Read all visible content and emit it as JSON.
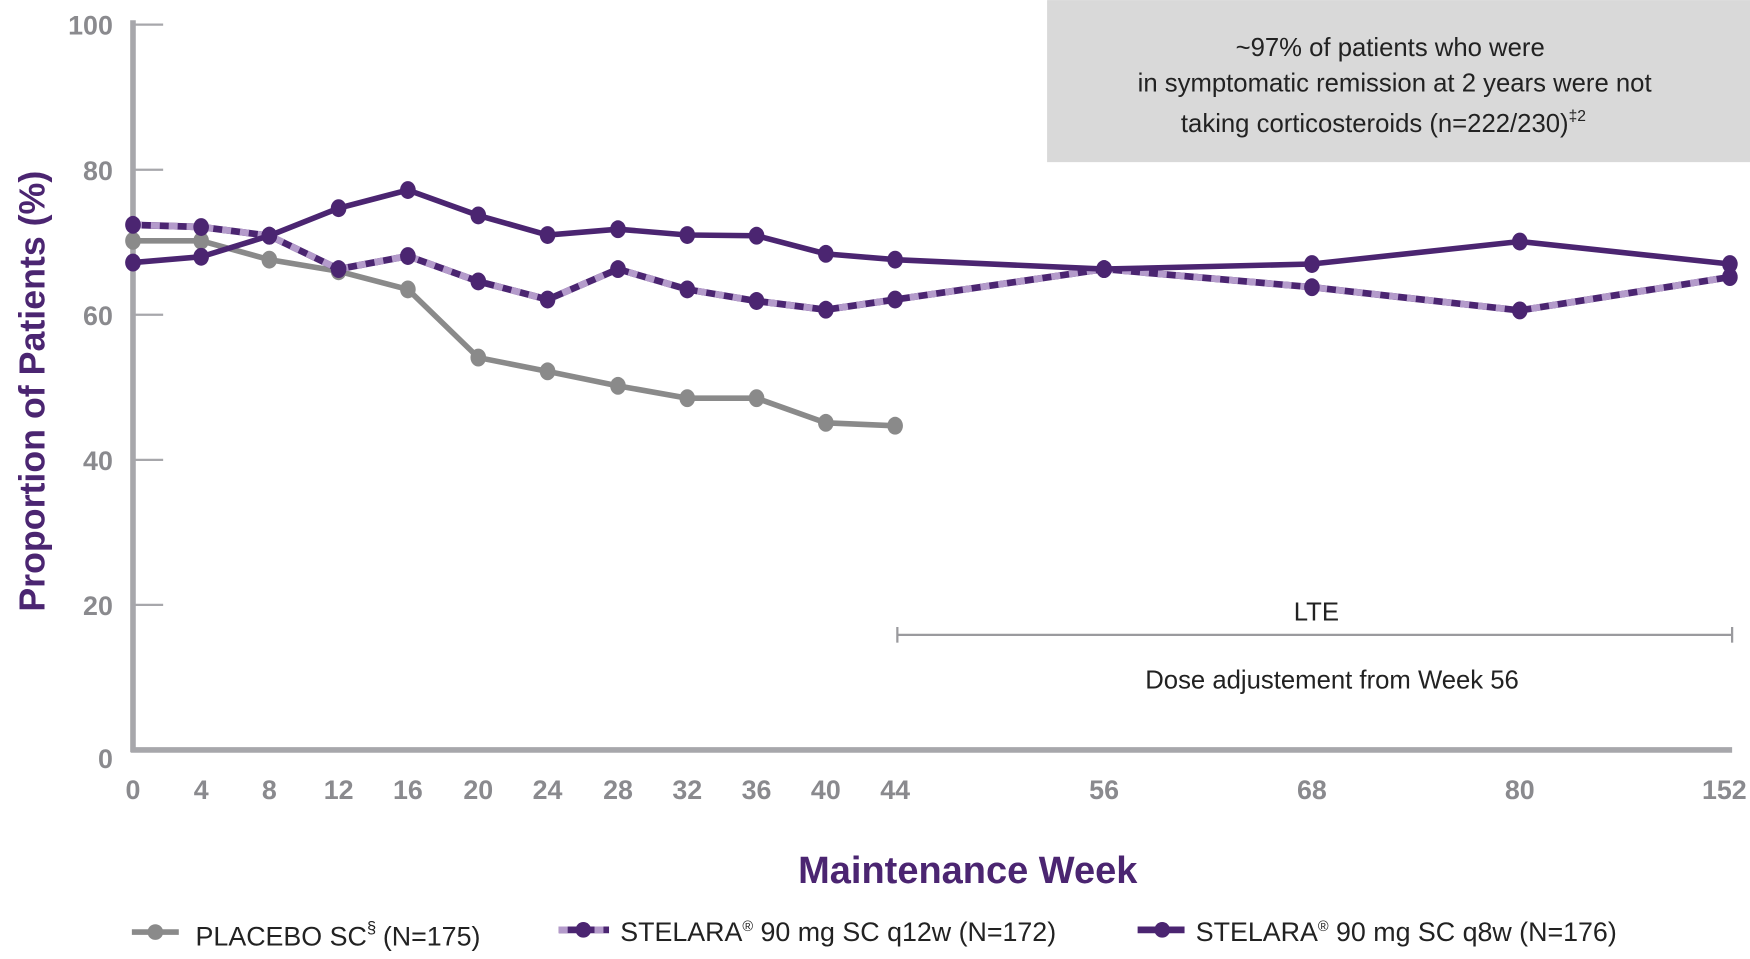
{
  "chart_data": {
    "type": "line",
    "title": "",
    "xlabel": "Maintenance Week",
    "ylabel": "Proportion of Patients (%)",
    "ylim": [
      0,
      100
    ],
    "y_ticks": [
      "0",
      "20",
      "40",
      "60",
      "80",
      "100"
    ],
    "x_ticks": [
      "0",
      "4",
      "8",
      "12",
      "16",
      "20",
      "24",
      "28",
      "32",
      "36",
      "40",
      "44",
      "56",
      "68",
      "80",
      "152"
    ],
    "x_scale": "categorical (unevenly spaced after week 44)",
    "grid": false,
    "legend_position": "bottom",
    "colors": {
      "placebo": "#8a8a8a",
      "stelara_dark": "#4b2571",
      "stelara_light": "#b49bcb",
      "axis": "#a7a7ab",
      "box": "#d9d9d9"
    },
    "series": [
      {
        "name": "PLACEBO SC",
        "superscript": "§",
        "n_label": "(N=175)",
        "style": "solid-grey",
        "x": [
          0,
          4,
          8,
          12,
          16,
          20,
          24,
          28,
          32,
          36,
          40,
          44
        ],
        "y": [
          70.2,
          70.2,
          67.6,
          66.0,
          63.5,
          54.1,
          52.2,
          50.2,
          48.5,
          48.5,
          45.1,
          44.7
        ]
      },
      {
        "name": "STELARA",
        "superscript": "®",
        "n_label": " 90 mg SC q12w (N=172)",
        "style": "dashed-purple",
        "x": [
          0,
          4,
          8,
          12,
          16,
          20,
          24,
          28,
          32,
          36,
          40,
          44,
          56,
          68,
          80,
          152
        ],
        "y": [
          72.4,
          72.1,
          70.9,
          66.3,
          68.1,
          64.6,
          62.1,
          66.3,
          63.5,
          61.9,
          60.7,
          62.1,
          66.3,
          63.8,
          60.6,
          65.2
        ]
      },
      {
        "name": "STELARA",
        "superscript": "®",
        "n_label": " 90 mg SC q8w (N=176)",
        "style": "solid-purple",
        "x": [
          0,
          4,
          8,
          12,
          16,
          20,
          24,
          28,
          32,
          36,
          40,
          44,
          56,
          68,
          80,
          152
        ],
        "y": [
          67.2,
          68.0,
          70.9,
          74.7,
          77.2,
          73.7,
          71.0,
          71.8,
          71.0,
          70.9,
          68.4,
          67.6,
          66.3,
          67.0,
          70.1,
          67.0
        ]
      }
    ],
    "annotations": {
      "box_lines": [
        "~97% of patients who were",
        "in symptomatic remission at 2 years were not",
        "taking corticosteroids (n=222/230)"
      ],
      "box_superscript": "‡2",
      "lte_label": "LTE",
      "lte_range_weeks": [
        44,
        152
      ],
      "lte_note": "Dose adjustement from Week 56"
    }
  }
}
